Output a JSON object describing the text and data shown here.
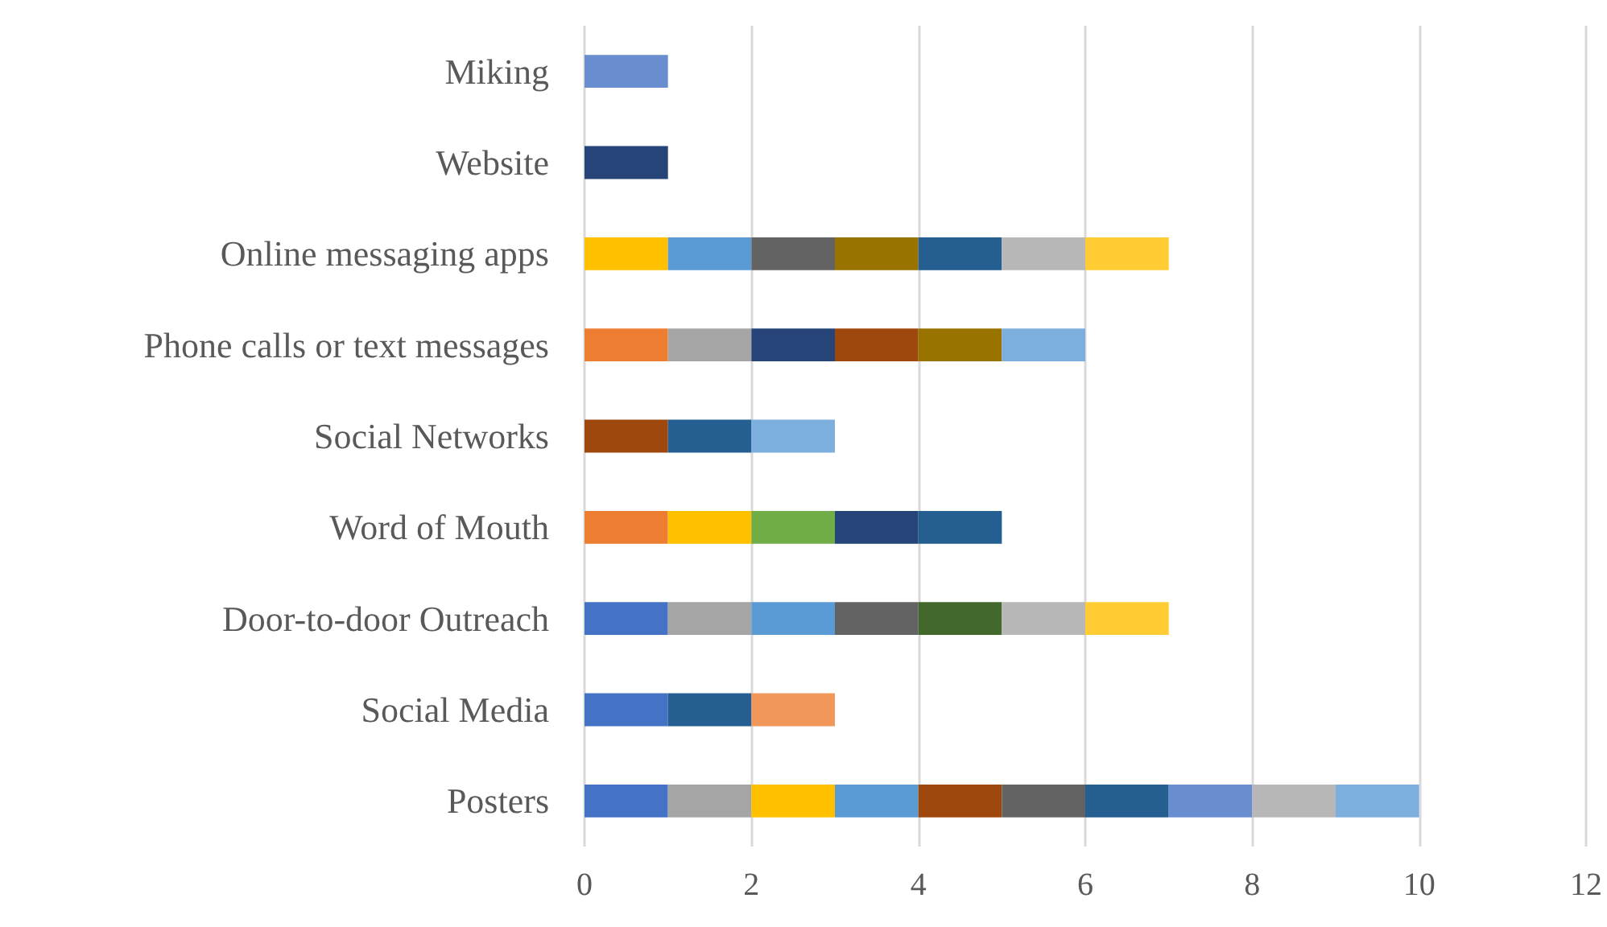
{
  "chart_data": {
    "type": "bar",
    "orientation": "horizontal",
    "stacked": true,
    "grid": "x",
    "categories": [
      "Miking",
      "Website",
      "Online messaging apps",
      "Phone calls or text messages",
      "Social Networks",
      "Word of Mouth",
      "Door-to-door Outreach",
      "Social Media",
      "Posters"
    ],
    "xlim": [
      0,
      12
    ],
    "xticks": [
      0,
      2,
      4,
      6,
      8,
      10,
      12
    ],
    "series": [
      {
        "values": [
          1,
          1,
          1,
          1,
          1,
          1,
          1,
          1,
          1
        ],
        "colors": [
          "#698ed0",
          "#264478",
          "#ffc000",
          "#ed7d31",
          "#9e480e",
          "#ed7d31",
          "#4472c4",
          "#4472c4",
          "#4472c4"
        ]
      },
      {
        "values": [
          null,
          null,
          1,
          1,
          1,
          1,
          1,
          1,
          1
        ],
        "colors": [
          null,
          null,
          "#5b9bd5",
          "#a5a5a5",
          "#255e91",
          "#ffc000",
          "#a5a5a5",
          "#255e91",
          "#a5a5a5"
        ]
      },
      {
        "values": [
          null,
          null,
          1,
          1,
          1,
          1,
          1,
          1,
          1
        ],
        "colors": [
          null,
          null,
          "#636363",
          "#264478",
          "#7cafdd",
          "#70ad47",
          "#5b9bd5",
          "#f1975a",
          "#ffc000"
        ]
      },
      {
        "values": [
          null,
          null,
          1,
          1,
          null,
          1,
          1,
          null,
          1
        ],
        "colors": [
          null,
          null,
          "#997300",
          "#9e480e",
          null,
          "#264478",
          "#636363",
          null,
          "#5b9bd5"
        ]
      },
      {
        "values": [
          null,
          null,
          1,
          1,
          null,
          1,
          1,
          null,
          1
        ],
        "colors": [
          null,
          null,
          "#255e91",
          "#997300",
          null,
          "#255e91",
          "#43682b",
          null,
          "#9e480e"
        ]
      },
      {
        "values": [
          null,
          null,
          1,
          1,
          null,
          null,
          1,
          null,
          1
        ],
        "colors": [
          null,
          null,
          "#b7b7b7",
          "#7cafdd",
          null,
          null,
          "#b7b7b7",
          null,
          "#636363"
        ]
      },
      {
        "values": [
          null,
          null,
          1,
          null,
          null,
          null,
          1,
          null,
          1
        ],
        "colors": [
          null,
          null,
          "#ffcd33",
          null,
          null,
          null,
          "#ffcd33",
          null,
          "#255e91"
        ]
      },
      {
        "values": [
          null,
          null,
          null,
          null,
          null,
          null,
          null,
          null,
          1
        ],
        "colors": [
          null,
          null,
          null,
          null,
          null,
          null,
          null,
          null,
          "#698ed0"
        ]
      },
      {
        "values": [
          null,
          null,
          null,
          null,
          null,
          null,
          null,
          null,
          1
        ],
        "colors": [
          null,
          null,
          null,
          null,
          null,
          null,
          null,
          null,
          "#b7b7b7"
        ]
      },
      {
        "values": [
          null,
          null,
          null,
          null,
          null,
          null,
          null,
          null,
          1
        ],
        "colors": [
          null,
          null,
          null,
          null,
          null,
          null,
          null,
          null,
          "#7cafdd"
        ]
      }
    ]
  }
}
